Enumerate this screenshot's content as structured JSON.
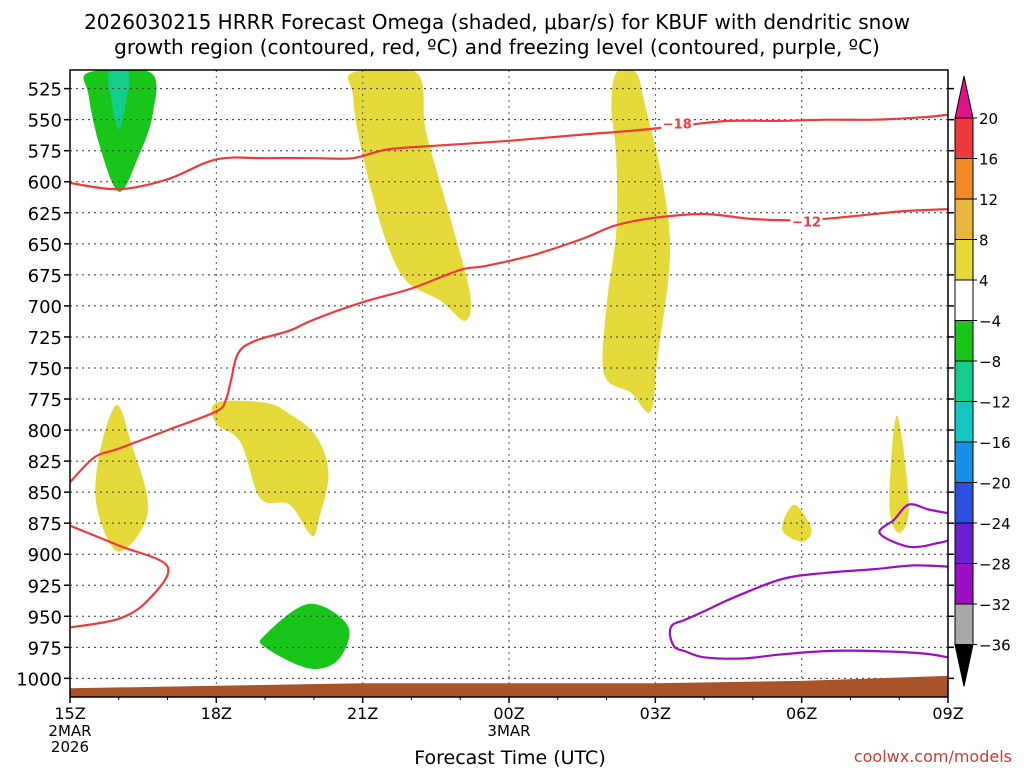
{
  "chart_data": {
    "type": "heatmap",
    "title_line1": "2026030215 HRRR Forecast Omega (shaded, μbar/s) for KBUF with dendritic snow",
    "title_line2": "growth region (contoured, red, ºC) and freezing level (contoured, purple, ºC)",
    "xlabel": "Forecast Time (UTC)",
    "credit": "coolwx.com/models",
    "x_tick_labels": [
      "15Z",
      "18Z",
      "21Z",
      "00Z",
      "03Z",
      "06Z",
      "09Z"
    ],
    "x_tick_hours": [
      0,
      3,
      6,
      9,
      12,
      15,
      18
    ],
    "x_date_labels": [
      {
        "hour": 0,
        "lines": [
          "2MAR",
          "2026"
        ]
      },
      {
        "hour": 9,
        "lines": [
          "3MAR"
        ]
      }
    ],
    "xlim": [
      0,
      18
    ],
    "y_ticks": [
      525,
      550,
      575,
      600,
      625,
      650,
      675,
      700,
      725,
      750,
      775,
      800,
      825,
      850,
      875,
      900,
      925,
      950,
      975,
      1000
    ],
    "ylim": [
      1015,
      510
    ],
    "grid": true,
    "colorbar": {
      "labels": [
        "20",
        "16",
        "12",
        "8",
        "4",
        "−4",
        "−8",
        "−12",
        "−16",
        "−20",
        "−24",
        "−28",
        "−32",
        "−36"
      ],
      "colors": [
        "#ef3a3d",
        "#f28a2a",
        "#e8b63a",
        "#e6d93a",
        "#ffffff",
        "#18c61a",
        "#14cc8c",
        "#12c7c0",
        "#1890e8",
        "#2c4fe0",
        "#6a20d0",
        "#9a10c4",
        "#a9a9a9"
      ],
      "top_arrow_color": "#e0128a",
      "bottom_arrow_color": "#000000"
    },
    "shaded_regions": [
      {
        "value_range": "4 to 8",
        "color": "#e6d93a",
        "points": [
          [
            0.95,
            780
          ],
          [
            1.25,
            810
          ],
          [
            1.6,
            865
          ],
          [
            1.0,
            898
          ],
          [
            0.55,
            862
          ],
          [
            0.6,
            820
          ]
        ]
      },
      {
        "value_range": "4 to 8",
        "color": "#e6d93a",
        "points": [
          [
            3.0,
            778
          ],
          [
            4.0,
            778
          ],
          [
            4.5,
            787
          ],
          [
            5.05,
            805
          ],
          [
            5.3,
            835
          ],
          [
            5.1,
            872
          ],
          [
            4.95,
            885
          ],
          [
            4.5,
            860
          ],
          [
            3.9,
            855
          ],
          [
            3.5,
            810
          ],
          [
            3.0,
            795
          ]
        ]
      },
      {
        "value_range": "4 to 8",
        "color": "#e6d93a",
        "points": [
          [
            5.8,
            512
          ],
          [
            7.1,
            512
          ],
          [
            7.3,
            560
          ],
          [
            7.8,
            630
          ],
          [
            8.2,
            690
          ],
          [
            8.1,
            712
          ],
          [
            7.6,
            696
          ],
          [
            6.9,
            680
          ],
          [
            6.5,
            650
          ],
          [
            6.2,
            610
          ],
          [
            5.9,
            560
          ],
          [
            5.8,
            530
          ]
        ]
      },
      {
        "value_range": "4 to 8",
        "color": "#e6d93a",
        "points": [
          [
            11.2,
            512
          ],
          [
            11.6,
            512
          ],
          [
            11.8,
            540
          ],
          [
            12.15,
            600
          ],
          [
            12.3,
            660
          ],
          [
            12.05,
            740
          ],
          [
            11.9,
            785
          ],
          [
            11.5,
            770
          ],
          [
            10.95,
            755
          ],
          [
            11.0,
            700
          ],
          [
            11.2,
            640
          ],
          [
            11.2,
            580
          ],
          [
            11.1,
            540
          ]
        ]
      },
      {
        "value_range": "4 to 8",
        "color": "#e6d93a",
        "points": [
          [
            14.85,
            860
          ],
          [
            15.2,
            880
          ],
          [
            15.0,
            890
          ],
          [
            14.6,
            880
          ]
        ]
      },
      {
        "value_range": "4 to 8",
        "color": "#e6d93a",
        "points": [
          [
            16.95,
            788
          ],
          [
            17.2,
            860
          ],
          [
            17.0,
            883
          ],
          [
            16.8,
            860
          ]
        ]
      },
      {
        "value_range": "-4 to -8",
        "color": "#18c61a",
        "points": [
          [
            0.38,
            512
          ],
          [
            1.65,
            512
          ],
          [
            1.7,
            545
          ],
          [
            1.4,
            580
          ],
          [
            1.0,
            608
          ],
          [
            0.6,
            570
          ],
          [
            0.38,
            530
          ]
        ]
      },
      {
        "value_range": "-8 to -12",
        "color": "#14cc8c",
        "points": [
          [
            0.8,
            512
          ],
          [
            1.2,
            512
          ],
          [
            1.15,
            535
          ],
          [
            1.0,
            558
          ],
          [
            0.85,
            535
          ]
        ]
      },
      {
        "value_range": "-4 to -8",
        "color": "#18c61a",
        "points": [
          [
            4.0,
            965
          ],
          [
            4.9,
            940
          ],
          [
            5.7,
            958
          ],
          [
            5.5,
            985
          ],
          [
            4.9,
            992
          ],
          [
            4.0,
            975
          ]
        ]
      }
    ],
    "contours_red": [
      {
        "label": "−18",
        "label_at": [
          12.45,
          553
        ],
        "points": [
          [
            0,
            601
          ],
          [
            1.0,
            606
          ],
          [
            2.0,
            598
          ],
          [
            3.0,
            582
          ],
          [
            4.0,
            581
          ],
          [
            5.0,
            581
          ],
          [
            5.8,
            581
          ],
          [
            6.5,
            574
          ],
          [
            7.5,
            571
          ],
          [
            9.0,
            567
          ],
          [
            10.5,
            562
          ],
          [
            11.5,
            559
          ],
          [
            12.5,
            555
          ],
          [
            13.5,
            551
          ],
          [
            14.5,
            551
          ],
          [
            15.5,
            550
          ],
          [
            16.5,
            550
          ],
          [
            17.5,
            548
          ],
          [
            18,
            546
          ]
        ]
      },
      {
        "label": "−12",
        "label_at": [
          15.1,
          632
        ],
        "points": [
          [
            0,
            842
          ],
          [
            0.5,
            822
          ],
          [
            1.0,
            815
          ],
          [
            2.0,
            800
          ],
          [
            3.0,
            785
          ],
          [
            3.2,
            775
          ],
          [
            3.3,
            760
          ],
          [
            3.45,
            738
          ],
          [
            3.8,
            728
          ],
          [
            4.5,
            720
          ],
          [
            5.0,
            711
          ],
          [
            6.0,
            697
          ],
          [
            7.0,
            686
          ],
          [
            8.0,
            671
          ],
          [
            8.5,
            668
          ],
          [
            9.5,
            659
          ],
          [
            10.5,
            646
          ],
          [
            11.2,
            635
          ],
          [
            12.0,
            629
          ],
          [
            13.0,
            626
          ],
          [
            14.0,
            630
          ],
          [
            15.0,
            631
          ],
          [
            16.0,
            628
          ],
          [
            17.0,
            624
          ],
          [
            18,
            622
          ]
        ]
      },
      {
        "label": "",
        "points": [
          [
            0,
            877
          ],
          [
            1.0,
            893
          ],
          [
            2.0,
            910
          ],
          [
            1.6,
            937
          ],
          [
            1.0,
            952
          ],
          [
            0,
            959
          ]
        ]
      }
    ],
    "contours_purple": [
      {
        "label": "",
        "points": [
          [
            18,
            867
          ],
          [
            17.6,
            864
          ],
          [
            17.2,
            860
          ],
          [
            16.9,
            872
          ],
          [
            16.6,
            883
          ],
          [
            17.2,
            894
          ],
          [
            17.8,
            891
          ],
          [
            18,
            889
          ]
        ]
      },
      {
        "label": "",
        "points": [
          [
            18,
            910
          ],
          [
            17.3,
            909
          ],
          [
            16.5,
            912
          ],
          [
            15.5,
            915
          ],
          [
            14.6,
            920
          ],
          [
            13.6,
            935
          ],
          [
            13.0,
            946
          ],
          [
            12.6,
            953
          ],
          [
            12.35,
            957
          ],
          [
            12.3,
            965
          ],
          [
            12.4,
            975
          ],
          [
            12.6,
            978
          ],
          [
            13.0,
            983
          ],
          [
            13.8,
            984
          ],
          [
            14.5,
            981
          ],
          [
            15.5,
            978
          ],
          [
            16.5,
            978
          ],
          [
            17.5,
            980
          ],
          [
            18,
            983
          ]
        ]
      }
    ],
    "terrain": {
      "color": "#a8532a",
      "points": [
        [
          0,
          1008
        ],
        [
          3,
          1006
        ],
        [
          6,
          1004
        ],
        [
          9,
          1004
        ],
        [
          12,
          1004
        ],
        [
          15,
          1002
        ],
        [
          18,
          998
        ]
      ]
    }
  }
}
